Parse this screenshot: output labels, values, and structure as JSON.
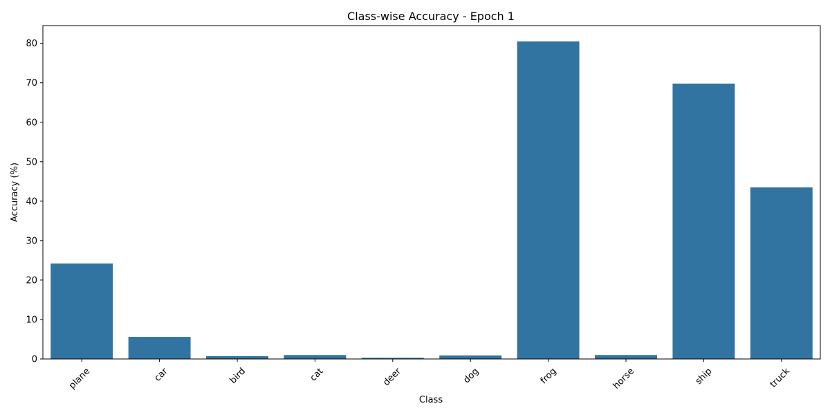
{
  "chart_data": {
    "type": "bar",
    "title": "Class-wise Accuracy - Epoch 1",
    "xlabel": "Class",
    "ylabel": "Accuracy (%)",
    "categories": [
      "plane",
      "car",
      "bird",
      "cat",
      "deer",
      "dog",
      "frog",
      "horse",
      "ship",
      "truck"
    ],
    "values": [
      24.2,
      5.6,
      0.7,
      1.0,
      0.3,
      0.9,
      80.5,
      1.0,
      69.8,
      43.5
    ],
    "ylim": [
      0,
      84.5
    ],
    "yticks": [
      0,
      10,
      20,
      30,
      40,
      50,
      60,
      70,
      80
    ],
    "grid": false,
    "bar_color": "#3274a1"
  }
}
